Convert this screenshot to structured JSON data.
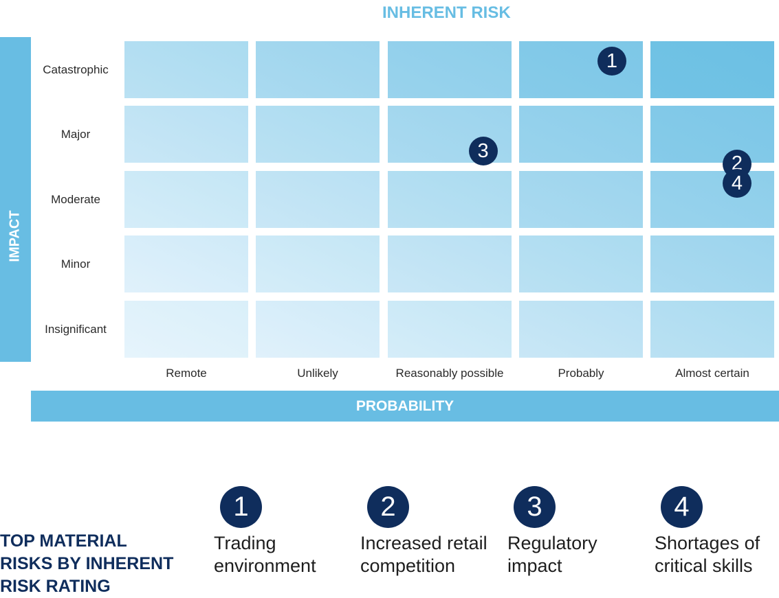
{
  "title": "INHERENT RISK",
  "y_axis_title": "IMPACT",
  "x_axis_title": "PROBABILITY",
  "impact_levels": [
    "Catastrophic",
    "Major",
    "Moderate",
    "Minor",
    "Insignificant"
  ],
  "probability_levels": [
    "Remote",
    "Unlikely",
    "Reasonably possible",
    "Probably",
    "Almost certain"
  ],
  "colors": {
    "bar": "#68bde3",
    "marker": "#0f2d5c",
    "cell_light": "#e6f4fc",
    "cell_dark": "#6cc0e4",
    "title": "#67bde3"
  },
  "markers": [
    {
      "label": "1",
      "impact": "Catastrophic",
      "probability": "Probably"
    },
    {
      "label": "2",
      "impact": "Major",
      "probability": "Almost certain"
    },
    {
      "label": "3",
      "impact": "Major",
      "probability": "Reasonably possible"
    },
    {
      "label": "4",
      "impact": "Moderate",
      "probability": "Almost certain"
    }
  ],
  "legend": {
    "title_lines": [
      "TOP MATERIAL",
      "RISKS BY INHERENT",
      "RISK RATING"
    ],
    "items": [
      {
        "number": "1",
        "lines": [
          "Trading",
          "environment"
        ]
      },
      {
        "number": "2",
        "lines": [
          "Increased retail",
          "competition"
        ]
      },
      {
        "number": "3",
        "lines": [
          "Regulatory",
          "impact"
        ]
      },
      {
        "number": "4",
        "lines": [
          "Shortages of",
          "critical skills"
        ]
      }
    ]
  }
}
